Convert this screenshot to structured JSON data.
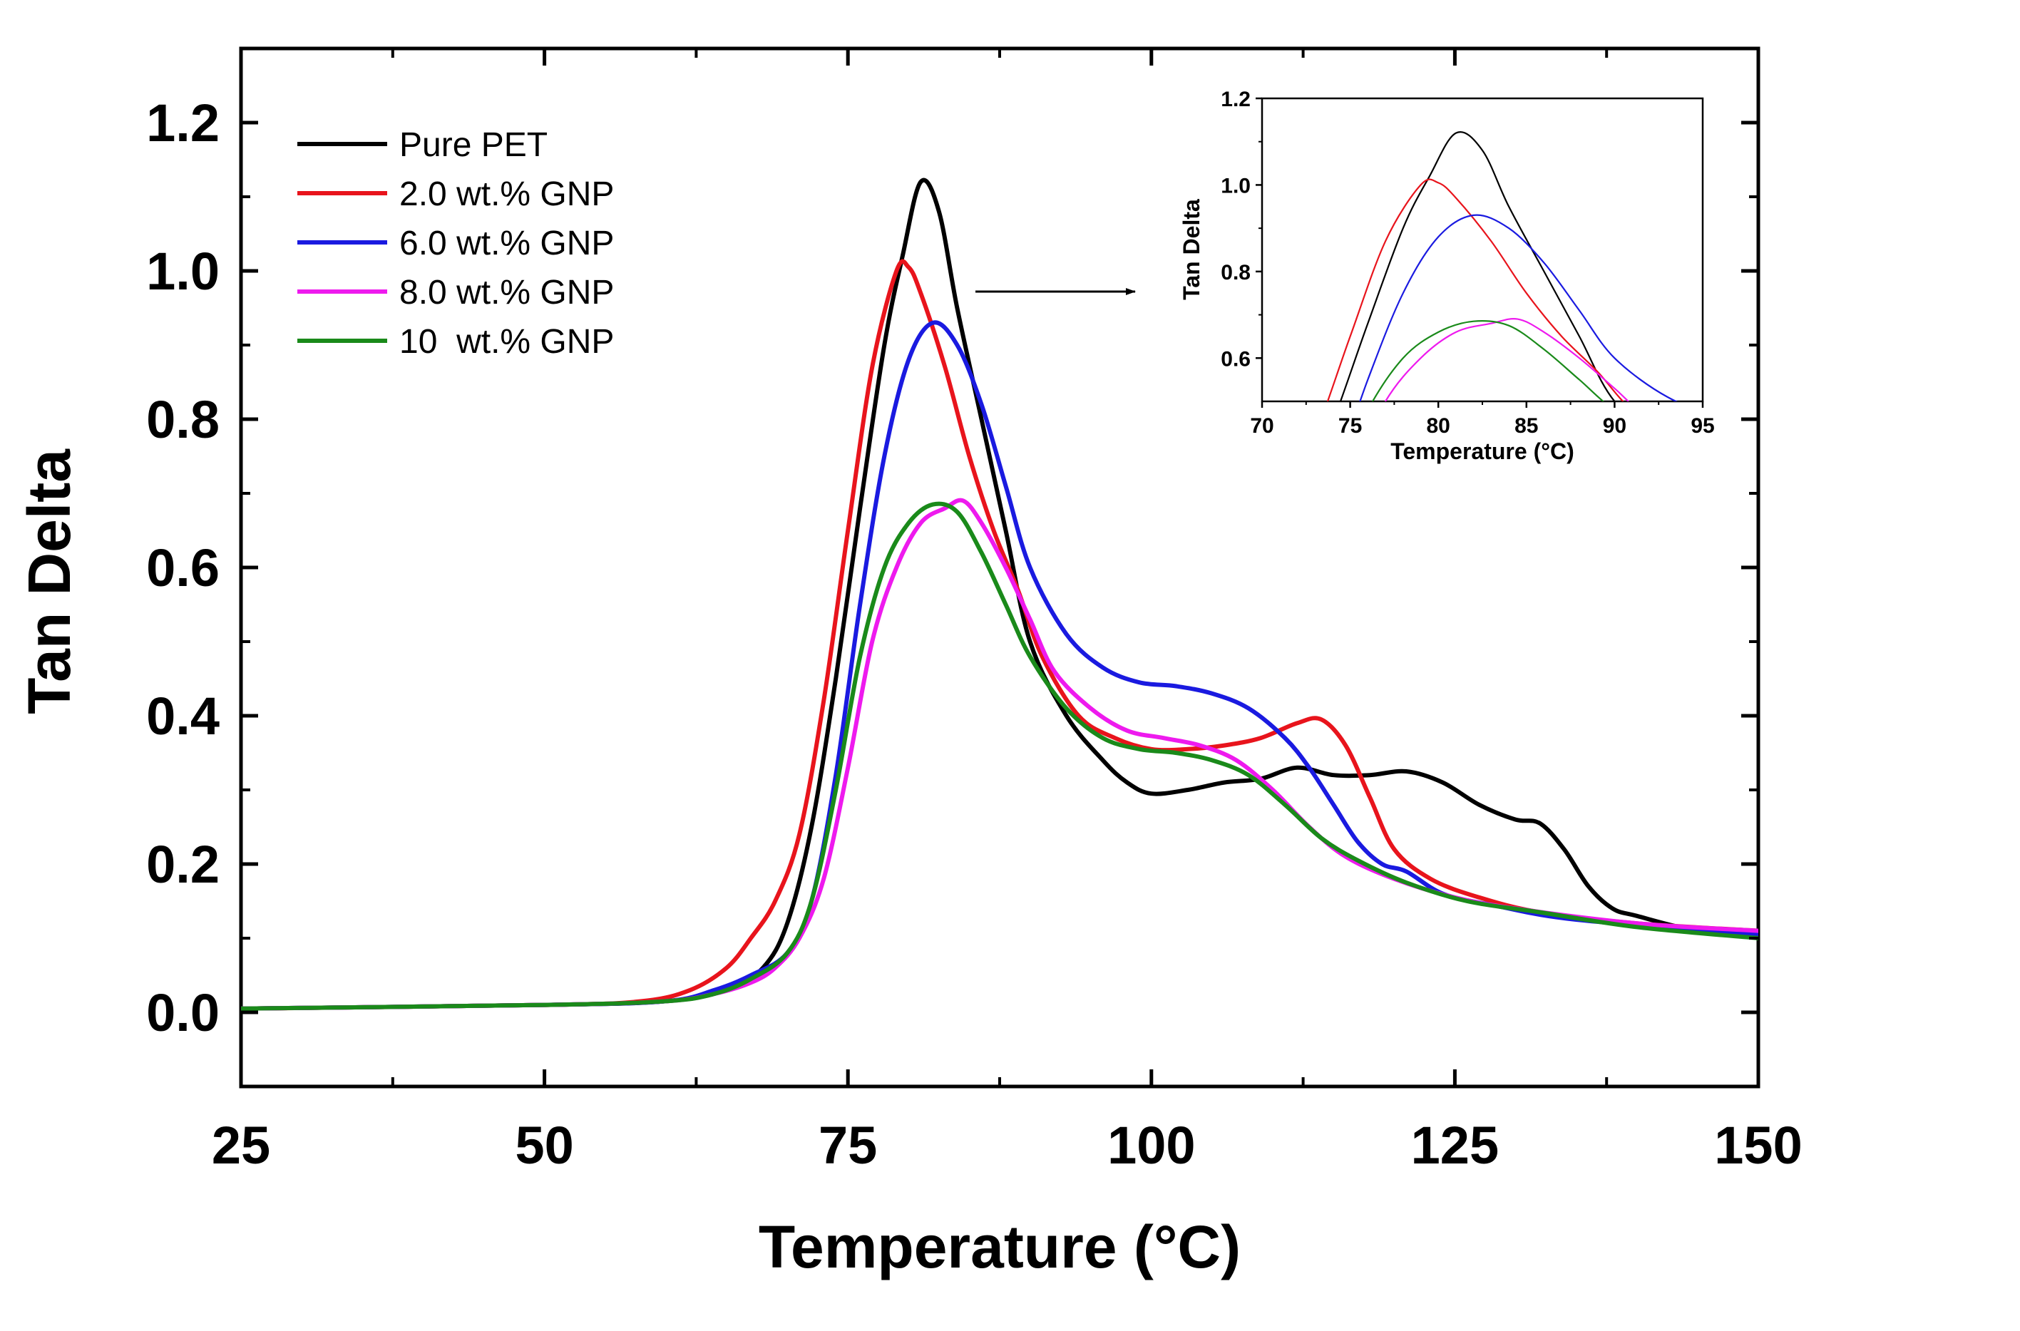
{
  "chart_data": [
    {
      "type": "line",
      "role": "main",
      "title": "",
      "xlabel": "Temperature (°C)",
      "ylabel": "Tan Delta",
      "xlim": [
        25,
        150
      ],
      "ylim": [
        -0.1,
        1.3
      ],
      "xticks": [
        25,
        50,
        75,
        100,
        125,
        150
      ],
      "xtick_labels": [
        "25",
        "50",
        "75",
        "100",
        "125",
        "150"
      ],
      "yticks": [
        0.0,
        0.2,
        0.4,
        0.6,
        0.8,
        1.0,
        1.2
      ],
      "ytick_labels": [
        "0.0",
        "0.2",
        "0.4",
        "0.6",
        "0.8",
        "1.0",
        "1.2"
      ],
      "grid": false,
      "legend_position": "top-left",
      "series": [
        {
          "name": "Pure PET",
          "color": "#000000",
          "points": [
            [
              25,
              0.005
            ],
            [
              50,
              0.01
            ],
            [
              60,
              0.015
            ],
            [
              65,
              0.03
            ],
            [
              68,
              0.06
            ],
            [
              70,
              0.12
            ],
            [
              72,
              0.25
            ],
            [
              74,
              0.45
            ],
            [
              76,
              0.68
            ],
            [
              78,
              0.9
            ],
            [
              79.5,
              1.02
            ],
            [
              81,
              1.12
            ],
            [
              82.5,
              1.08
            ],
            [
              84,
              0.95
            ],
            [
              86,
              0.8
            ],
            [
              88,
              0.65
            ],
            [
              90,
              0.5
            ],
            [
              93,
              0.4
            ],
            [
              96,
              0.34
            ],
            [
              98,
              0.31
            ],
            [
              100,
              0.295
            ],
            [
              103,
              0.3
            ],
            [
              106,
              0.31
            ],
            [
              109,
              0.315
            ],
            [
              112,
              0.33
            ],
            [
              115,
              0.32
            ],
            [
              118,
              0.32
            ],
            [
              121,
              0.325
            ],
            [
              124,
              0.31
            ],
            [
              127,
              0.28
            ],
            [
              130,
              0.26
            ],
            [
              132,
              0.255
            ],
            [
              134,
              0.22
            ],
            [
              136,
              0.17
            ],
            [
              138,
              0.14
            ],
            [
              140,
              0.13
            ],
            [
              145,
              0.11
            ],
            [
              150,
              0.105
            ]
          ]
        },
        {
          "name": "2.0 wt.% GNP",
          "color": "#e8141c",
          "points": [
            [
              25,
              0.005
            ],
            [
              50,
              0.01
            ],
            [
              58,
              0.015
            ],
            [
              62,
              0.03
            ],
            [
              65,
              0.06
            ],
            [
              67,
              0.1
            ],
            [
              69,
              0.15
            ],
            [
              71,
              0.24
            ],
            [
              73,
              0.42
            ],
            [
              75,
              0.65
            ],
            [
              77,
              0.87
            ],
            [
              79,
              1.0
            ],
            [
              80,
              1.005
            ],
            [
              81,
              0.97
            ],
            [
              83,
              0.87
            ],
            [
              85,
              0.75
            ],
            [
              87,
              0.65
            ],
            [
              89,
              0.57
            ],
            [
              91,
              0.48
            ],
            [
              94,
              0.4
            ],
            [
              97,
              0.37
            ],
            [
              100,
              0.355
            ],
            [
              103,
              0.355
            ],
            [
              106,
              0.36
            ],
            [
              109,
              0.37
            ],
            [
              112,
              0.39
            ],
            [
              114,
              0.395
            ],
            [
              116,
              0.36
            ],
            [
              118,
              0.29
            ],
            [
              120,
              0.22
            ],
            [
              123,
              0.18
            ],
            [
              127,
              0.155
            ],
            [
              132,
              0.135
            ],
            [
              140,
              0.12
            ],
            [
              150,
              0.11
            ]
          ]
        },
        {
          "name": "6.0 wt.% GNP",
          "color": "#1a1ae0",
          "points": [
            [
              25,
              0.005
            ],
            [
              50,
              0.01
            ],
            [
              60,
              0.015
            ],
            [
              64,
              0.03
            ],
            [
              67,
              0.05
            ],
            [
              70,
              0.08
            ],
            [
              72,
              0.15
            ],
            [
              74,
              0.32
            ],
            [
              76,
              0.55
            ],
            [
              78,
              0.75
            ],
            [
              80,
              0.88
            ],
            [
              82,
              0.93
            ],
            [
              84,
              0.9
            ],
            [
              86,
              0.82
            ],
            [
              88,
              0.71
            ],
            [
              90,
              0.6
            ],
            [
              93,
              0.51
            ],
            [
              96,
              0.465
            ],
            [
              99,
              0.445
            ],
            [
              102,
              0.44
            ],
            [
              105,
              0.43
            ],
            [
              108,
              0.41
            ],
            [
              111,
              0.37
            ],
            [
              113,
              0.33
            ],
            [
              115,
              0.28
            ],
            [
              117,
              0.23
            ],
            [
              119,
              0.2
            ],
            [
              121,
              0.19
            ],
            [
              124,
              0.16
            ],
            [
              128,
              0.145
            ],
            [
              135,
              0.125
            ],
            [
              150,
              0.105
            ]
          ]
        },
        {
          "name": "8.0 wt.% GNP",
          "color": "#ee1aee",
          "points": [
            [
              25,
              0.005
            ],
            [
              50,
              0.01
            ],
            [
              60,
              0.015
            ],
            [
              64,
              0.025
            ],
            [
              67,
              0.04
            ],
            [
              69,
              0.06
            ],
            [
              71,
              0.1
            ],
            [
              73,
              0.18
            ],
            [
              75,
              0.33
            ],
            [
              77,
              0.5
            ],
            [
              79,
              0.6
            ],
            [
              81,
              0.66
            ],
            [
              83,
              0.68
            ],
            [
              84.5,
              0.69
            ],
            [
              86,
              0.66
            ],
            [
              88,
              0.6
            ],
            [
              90,
              0.53
            ],
            [
              92,
              0.46
            ],
            [
              95,
              0.41
            ],
            [
              98,
              0.38
            ],
            [
              101,
              0.37
            ],
            [
              104,
              0.36
            ],
            [
              107,
              0.34
            ],
            [
              110,
              0.3
            ],
            [
              113,
              0.25
            ],
            [
              116,
              0.21
            ],
            [
              120,
              0.18
            ],
            [
              125,
              0.155
            ],
            [
              130,
              0.14
            ],
            [
              140,
              0.12
            ],
            [
              150,
              0.11
            ]
          ]
        },
        {
          "name": "10  wt.% GNP",
          "color": "#1a8a1a",
          "points": [
            [
              25,
              0.005
            ],
            [
              50,
              0.01
            ],
            [
              60,
              0.015
            ],
            [
              64,
              0.025
            ],
            [
              67,
              0.045
            ],
            [
              70,
              0.08
            ],
            [
              72,
              0.15
            ],
            [
              74,
              0.3
            ],
            [
              76,
              0.48
            ],
            [
              78,
              0.6
            ],
            [
              80,
              0.66
            ],
            [
              82,
              0.685
            ],
            [
              84,
              0.675
            ],
            [
              86,
              0.62
            ],
            [
              88,
              0.55
            ],
            [
              90,
              0.48
            ],
            [
              93,
              0.41
            ],
            [
              96,
              0.37
            ],
            [
              99,
              0.355
            ],
            [
              102,
              0.35
            ],
            [
              105,
              0.34
            ],
            [
              108,
              0.32
            ],
            [
              111,
              0.28
            ],
            [
              114,
              0.235
            ],
            [
              117,
              0.205
            ],
            [
              121,
              0.175
            ],
            [
              126,
              0.15
            ],
            [
              132,
              0.135
            ],
            [
              140,
              0.115
            ],
            [
              150,
              0.1
            ]
          ]
        }
      ]
    },
    {
      "type": "line",
      "role": "inset",
      "title": "",
      "xlabel": "Temperature (°C)",
      "ylabel": "Tan Delta",
      "xlim": [
        70,
        95
      ],
      "ylim": [
        0.5,
        1.2
      ],
      "xticks": [
        70,
        75,
        80,
        85,
        90,
        95
      ],
      "xtick_labels": [
        "70",
        "75",
        "80",
        "85",
        "90",
        "95"
      ],
      "yticks": [
        0.6,
        0.8,
        1.0,
        1.2
      ],
      "ytick_labels": [
        "0.6",
        "0.8",
        "1.0",
        "1.2"
      ],
      "grid": false,
      "series_ref": "same series as main chart, zoomed to peak region"
    }
  ],
  "annotations": {
    "arrow": "points from main-chart peak region to inset"
  }
}
